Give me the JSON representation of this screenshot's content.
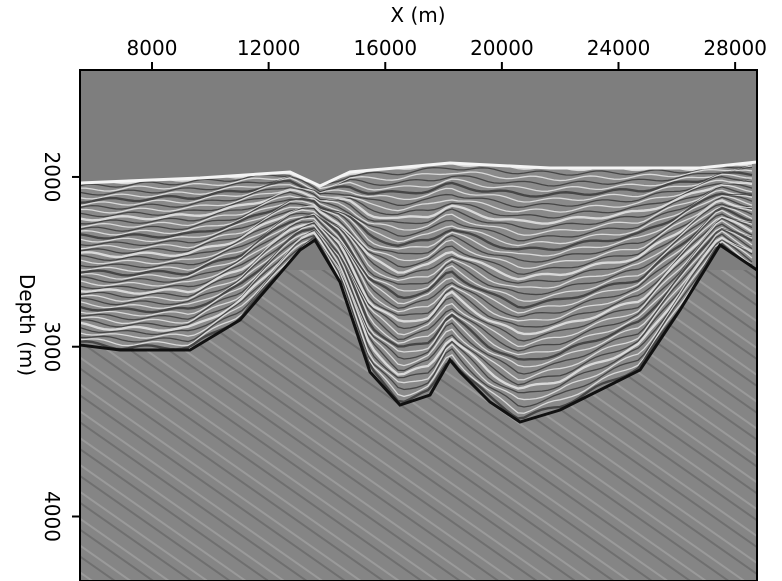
{
  "chart_data": {
    "type": "seismic-image",
    "xlabel": "X (m)",
    "ylabel": "Depth (m)",
    "xlim": [
      5530,
      28750
    ],
    "xticks": [
      8000,
      12000,
      16000,
      20000,
      24000,
      28000
    ],
    "ylim": [
      1370,
      4380
    ],
    "yticks": [
      2000,
      3000,
      4000
    ],
    "ydirection": "down"
  }
}
